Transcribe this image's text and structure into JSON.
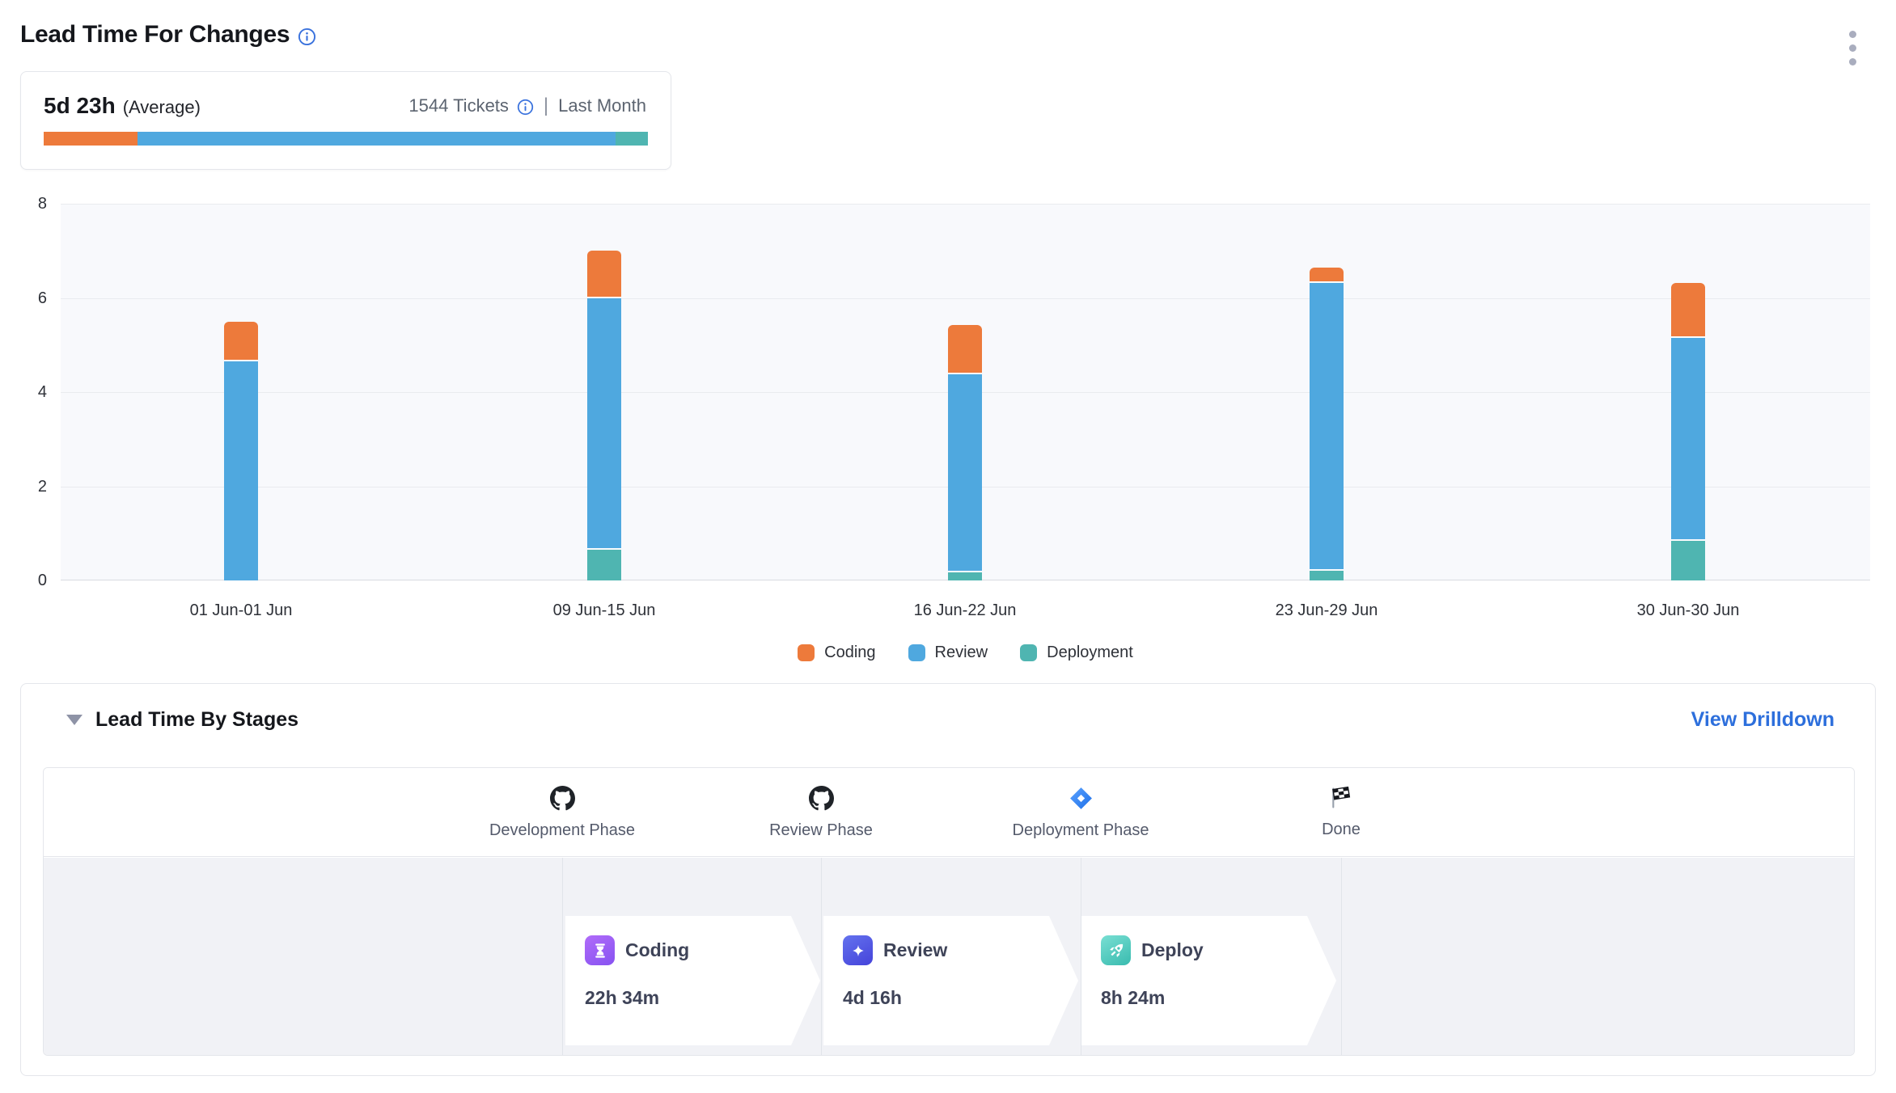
{
  "header": {
    "title": "Lead Time For Changes",
    "title_info_icon": "info-icon",
    "menu_icon": "kebab-menu-icon"
  },
  "summary": {
    "value": "5d 23h",
    "value_suffix": "(Average)",
    "tickets": "1544 Tickets",
    "tickets_info_icon": "info-icon",
    "separator": "|",
    "period": "Last Month",
    "bar_segments": [
      {
        "label": "Coding",
        "color": "#ED7A3B",
        "percent": 15.5
      },
      {
        "label": "Review",
        "color": "#4FA8DF",
        "percent": 79.1
      },
      {
        "label": "Deployment",
        "color": "#4FB5B1",
        "percent": 5.4
      }
    ]
  },
  "chart_data": {
    "type": "bar",
    "stacked": true,
    "title": "",
    "xlabel": "",
    "ylabel": "",
    "categories": [
      "01 Jun-01 Jun",
      "09 Jun-15 Jun",
      "16 Jun-22 Jun",
      "23 Jun-29 Jun",
      "30 Jun-30 Jun"
    ],
    "series": [
      {
        "name": "Deployment",
        "color": "#4FB5B1",
        "values": [
          0,
          0.65,
          0.17,
          0.2,
          0.85
        ]
      },
      {
        "name": "Review",
        "color": "#4FA8DF",
        "values": [
          4.65,
          5.35,
          4.2,
          6.12,
          4.3
        ]
      },
      {
        "name": "Coding",
        "color": "#ED7A3B",
        "values": [
          0.85,
          1.0,
          1.05,
          0.33,
          1.16
        ]
      }
    ],
    "legend_order": [
      "Coding",
      "Review",
      "Deployment"
    ],
    "legend_position": "bottom",
    "grid": true,
    "ylim": [
      0,
      8
    ],
    "yticks": [
      0,
      2,
      4,
      6,
      8
    ]
  },
  "stages_section": {
    "title": "Lead Time By Stages",
    "collapse_icon": "caret-down-icon",
    "drilldown_label": "View Drilldown",
    "phases": [
      {
        "label": "Development Phase",
        "icon": "github-icon"
      },
      {
        "label": "Review Phase",
        "icon": "github-icon"
      },
      {
        "label": "Deployment Phase",
        "icon": "jira-diamond-icon"
      },
      {
        "label": "Done",
        "icon": "checkered-flag-icon"
      }
    ],
    "stages": [
      {
        "label": "Coding",
        "duration": "22h 34m",
        "icon": "hourglass-icon",
        "icon_gradient": [
          "#B06CF9",
          "#8752F1"
        ]
      },
      {
        "label": "Review",
        "duration": "4d 16h",
        "icon": "four-point-star-icon",
        "icon_gradient": [
          "#6472EE",
          "#4543DA"
        ]
      },
      {
        "label": "Deploy",
        "duration": "8h 24m",
        "icon": "rocket-icon",
        "icon_gradient": [
          "#79DFD3",
          "#39BBAF"
        ]
      }
    ]
  },
  "colors": {
    "coding": "#ED7A3B",
    "review": "#4FA8DF",
    "deployment": "#4FB5B1",
    "link": "#2D6FDC",
    "info": "#3A72DD",
    "chart_bg": "#F8F9FC",
    "stages_body_bg": "#F1F2F6",
    "border": "#E4E6EB"
  }
}
